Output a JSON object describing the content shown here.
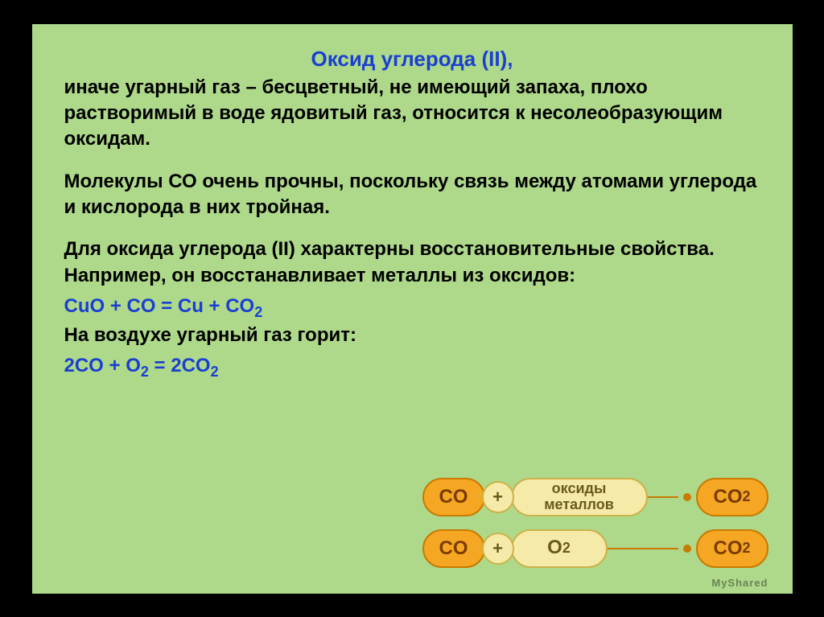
{
  "colors": {
    "slide_bg": "#aed98a",
    "title": "#1a3fd1",
    "body": "#000000",
    "eq": "#1a3fd1",
    "orange_fill": "#f5a623",
    "orange_stroke": "#c97a00",
    "orange_text": "#7a3b00",
    "cream_fill": "#f6eaa8",
    "cream_stroke": "#cbb24a",
    "cream_text": "#6a5a1a",
    "conn": "#c97a00"
  },
  "fonts": {
    "title_size": "26px",
    "body_size": "24px",
    "eq_size": "24px"
  },
  "title": "Оксид углерода (II),",
  "p1": "иначе угарный газ – бесцветный, не имеющий запаха, плохо растворимый в воде ядовитый газ, относится к несолеобразующим оксидам.",
  "p2": "Молекулы СО очень прочны, поскольку связь между атомами углерода и кислорода в них тройная.",
  "p3": "Для оксида углерода (II) характерны восстановительные свойства. Например, он восстанавливает металлы из оксидов:",
  "eq1_html": "CuO + CO = Cu + CO<sub>2</sub>",
  "p4": "На воздухе угарный газ горит:",
  "eq2_html": "2CO + O<sub>2</sub> = 2CO<sub>2</sub>",
  "diagram": {
    "rows": [
      {
        "left": "CO",
        "plus": "+",
        "mid": "оксиды\nметаллов",
        "mid_html": "оксиды<br>металлов",
        "right_html": "CO<sub>2</sub>"
      },
      {
        "left": "CO",
        "plus": "+",
        "mid_html": "O<sub>2</sub>",
        "right_html": "CO<sub>2</sub>"
      }
    ]
  },
  "watermark": "MySharеd"
}
